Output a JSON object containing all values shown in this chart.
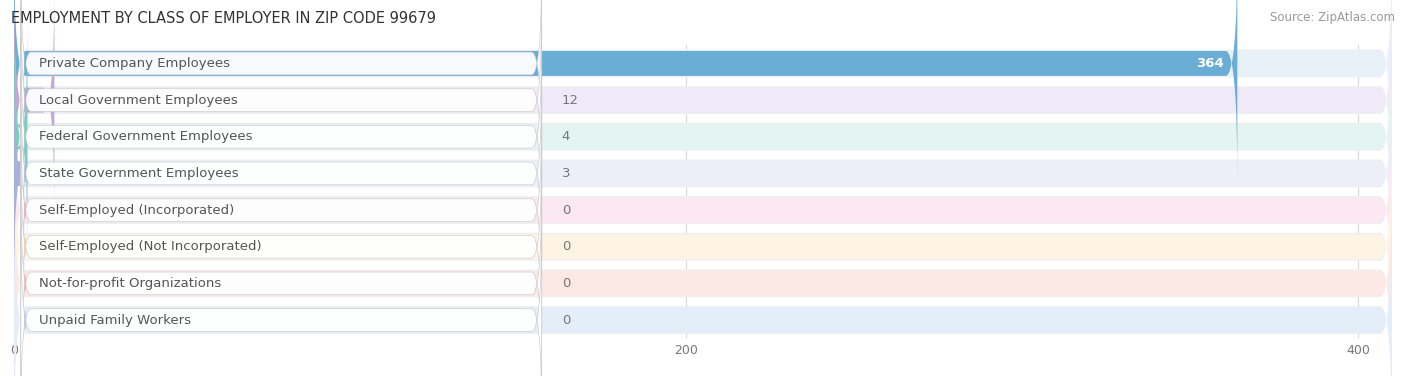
{
  "title": "EMPLOYMENT BY CLASS OF EMPLOYER IN ZIP CODE 99679",
  "source": "Source: ZipAtlas.com",
  "categories": [
    "Private Company Employees",
    "Local Government Employees",
    "Federal Government Employees",
    "State Government Employees",
    "Self-Employed (Incorporated)",
    "Self-Employed (Not Incorporated)",
    "Not-for-profit Organizations",
    "Unpaid Family Workers"
  ],
  "values": [
    364,
    12,
    4,
    3,
    0,
    0,
    0,
    0
  ],
  "bar_colors": [
    "#6aadd5",
    "#c4a8d4",
    "#7ecdc0",
    "#a8b0dc",
    "#f4a0bc",
    "#f8c89c",
    "#f4b0a8",
    "#a8c8e8"
  ],
  "bar_bg_colors": [
    "#e8f0f8",
    "#f0eaf8",
    "#e4f4f0",
    "#eceef8",
    "#fce8f0",
    "#fef4e4",
    "#fce8e4",
    "#e4eef8"
  ],
  "xlim_max": 410,
  "xticks": [
    0,
    200,
    400
  ],
  "bg_color": "#ffffff",
  "row_bg": "#eeeff2",
  "grid_color": "#d8d8d8",
  "title_color": "#333333",
  "source_color": "#999999",
  "label_color": "#555555",
  "value_color_inside": "#ffffff",
  "value_color_outside": "#777777",
  "title_fontsize": 10.5,
  "label_fontsize": 9.5,
  "value_fontsize": 9.5,
  "source_fontsize": 8.5
}
